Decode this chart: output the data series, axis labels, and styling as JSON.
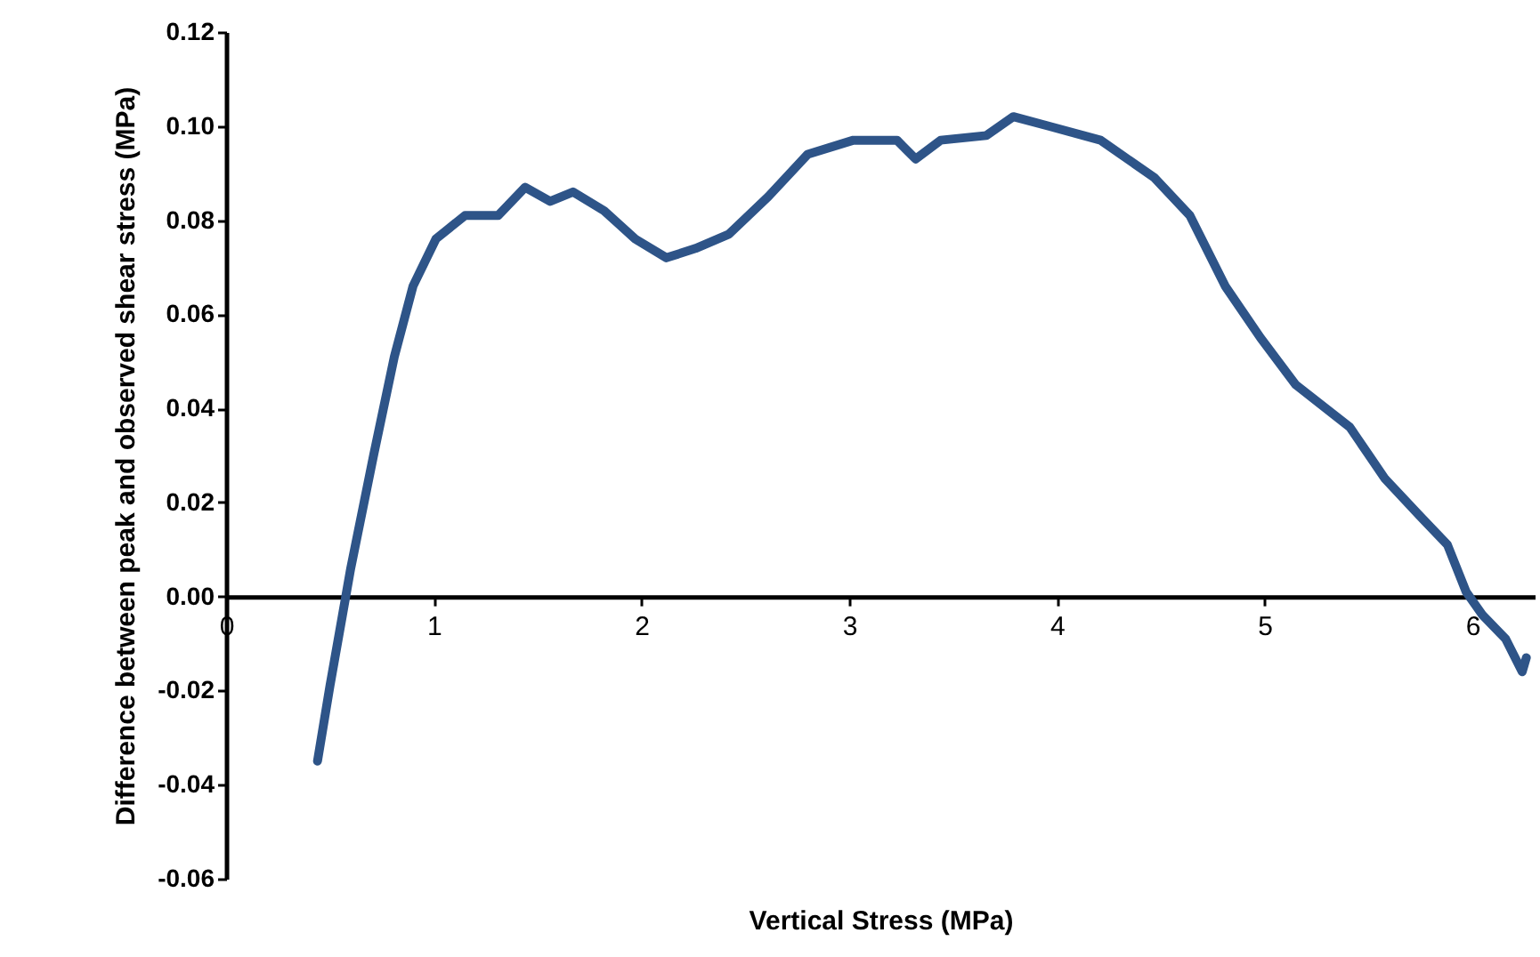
{
  "chart_data": {
    "type": "line",
    "xlabel": "Vertical Stress (MPa)",
    "ylabel": "Difference between peak  and observed shear stress (MPa)",
    "xlim": [
      0,
      6.3
    ],
    "xticks": [
      0,
      1,
      2,
      3,
      4,
      5,
      6
    ],
    "ylim": [
      -0.06,
      0.12
    ],
    "yticks": [
      {
        "value": -0.06,
        "label": "-0.06"
      },
      {
        "value": -0.04,
        "label": "-0.04"
      },
      {
        "value": -0.02,
        "label": "-0.02"
      },
      {
        "value": 0,
        "label": "0.00"
      },
      {
        "value": 0.02,
        "label": "0.02"
      },
      {
        "value": 0.04,
        "label": "0.04"
      },
      {
        "value": 0.06,
        "label": "0.06"
      },
      {
        "value": 0.08,
        "label": "0.08"
      },
      {
        "value": 0.1,
        "label": "0.10"
      },
      {
        "value": 0.12,
        "label": "0.12"
      }
    ],
    "grid": false,
    "marker": "none",
    "line_style": "solid",
    "series": [
      {
        "color": "#2e5488",
        "x": [
          0.44,
          0.5,
          0.56,
          0.6,
          0.71,
          0.81,
          0.9,
          1.01,
          1.15,
          1.31,
          1.44,
          1.56,
          1.67,
          1.82,
          1.97,
          2.12,
          2.26,
          2.42,
          2.61,
          2.8,
          3.02,
          3.23,
          3.32,
          3.44,
          3.66,
          3.79,
          3.96,
          4.21,
          4.47,
          4.64,
          4.81,
          4.98,
          5.15,
          5.41,
          5.58,
          5.75,
          5.88,
          5.97,
          6.05,
          6.16,
          6.24,
          6.26
        ],
        "values": [
          -0.035,
          -0.019,
          -0.004,
          0.006,
          0.03,
          0.051,
          0.066,
          0.076,
          0.081,
          0.081,
          0.087,
          0.084,
          0.086,
          0.082,
          0.076,
          0.072,
          0.074,
          0.077,
          0.085,
          0.094,
          0.097,
          0.097,
          0.093,
          0.097,
          0.098,
          0.102,
          0.1,
          0.097,
          0.089,
          0.081,
          0.066,
          0.055,
          0.045,
          0.036,
          0.025,
          0.017,
          0.011,
          0.001,
          -0.004,
          -0.009,
          -0.016,
          -0.013
        ]
      }
    ]
  }
}
